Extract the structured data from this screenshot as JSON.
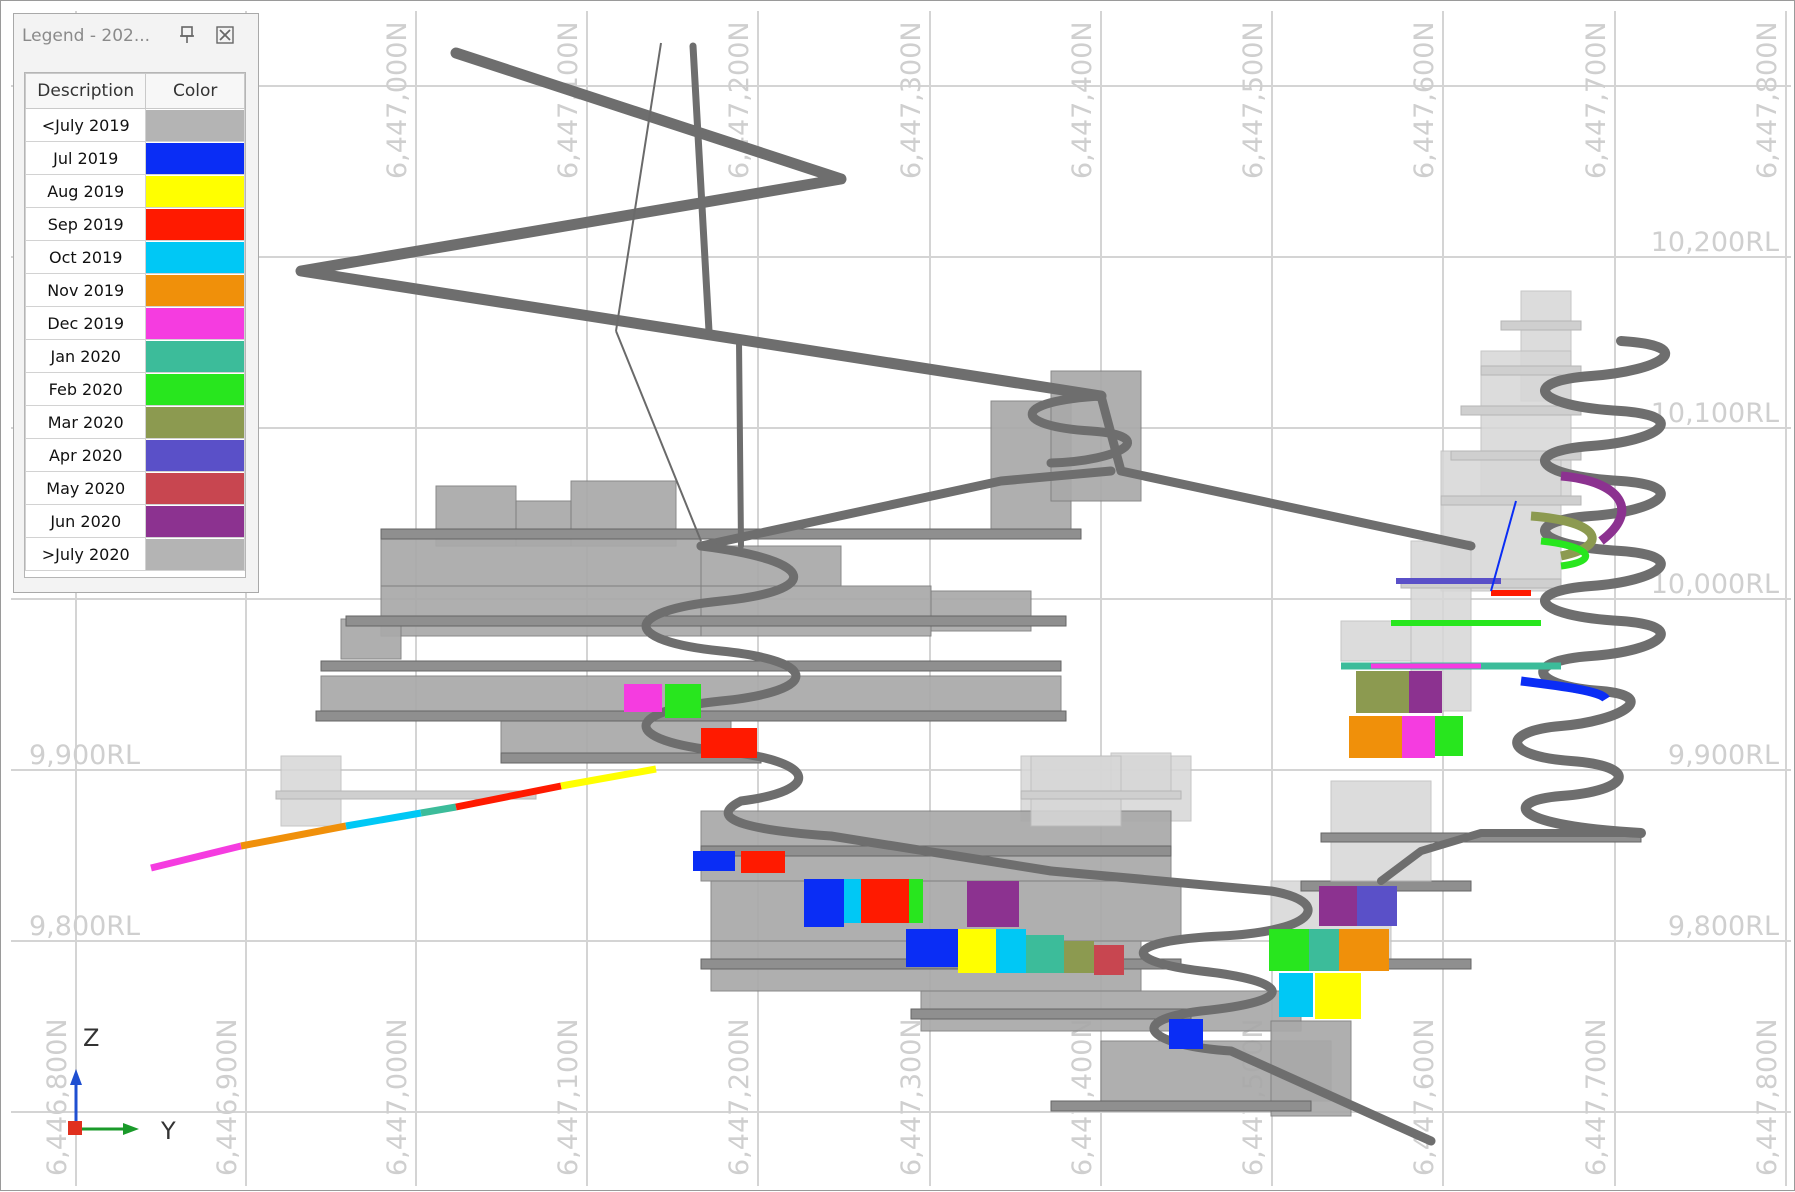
{
  "legend": {
    "title": "Legend - 202...",
    "headers": {
      "description": "Description",
      "color": "Color"
    },
    "items": [
      {
        "label": "<July 2019",
        "color": "#b4b4b4"
      },
      {
        "label": "Jul 2019",
        "color": "#0a2df5"
      },
      {
        "label": "Aug 2019",
        "color": "#ffff00"
      },
      {
        "label": "Sep 2019",
        "color": "#ff1a00"
      },
      {
        "label": "Oct 2019",
        "color": "#00c8f5"
      },
      {
        "label": "Nov 2019",
        "color": "#f0900a"
      },
      {
        "label": "Dec 2019",
        "color": "#f53ce0"
      },
      {
        "label": "Jan 2020",
        "color": "#3cbc9a"
      },
      {
        "label": "Feb 2020",
        "color": "#28e61e"
      },
      {
        "label": "Mar 2020",
        "color": "#8c9a50"
      },
      {
        "label": "Apr 2020",
        "color": "#5a50c8"
      },
      {
        "label": "May 2020",
        "color": "#c84650"
      },
      {
        "label": "Jun 2020",
        "color": "#8c3290"
      },
      {
        "label": ">July 2020",
        "color": "#b4b4b4"
      }
    ]
  },
  "grid": {
    "northings_top": [
      "6,447,000N",
      "6,447,100N",
      "6,447,200N",
      "6,447,300N",
      "6,447,400N",
      "6,447,500N",
      "6,447,600N",
      "6,447,700N",
      "6,447,800N"
    ],
    "northings_bottom": [
      "6,446,800N",
      "6,446,900N",
      "6,447,000N",
      "6,447,100N",
      "6,447,200N",
      "6,447,300N",
      "6,447,400N",
      "6,447,500N",
      "6,447,600N",
      "6,447,700N",
      "6,447,800N"
    ],
    "rl_right": [
      "10,200RL",
      "10,100RL",
      "10,000RL",
      "9,900RL",
      "9,800RL"
    ],
    "rl_left": [
      "9,900RL",
      "9,800RL"
    ]
  },
  "axes": {
    "z": "Z",
    "y": "Y"
  },
  "icons": {
    "pin": "pin-icon",
    "close": "close-icon"
  }
}
